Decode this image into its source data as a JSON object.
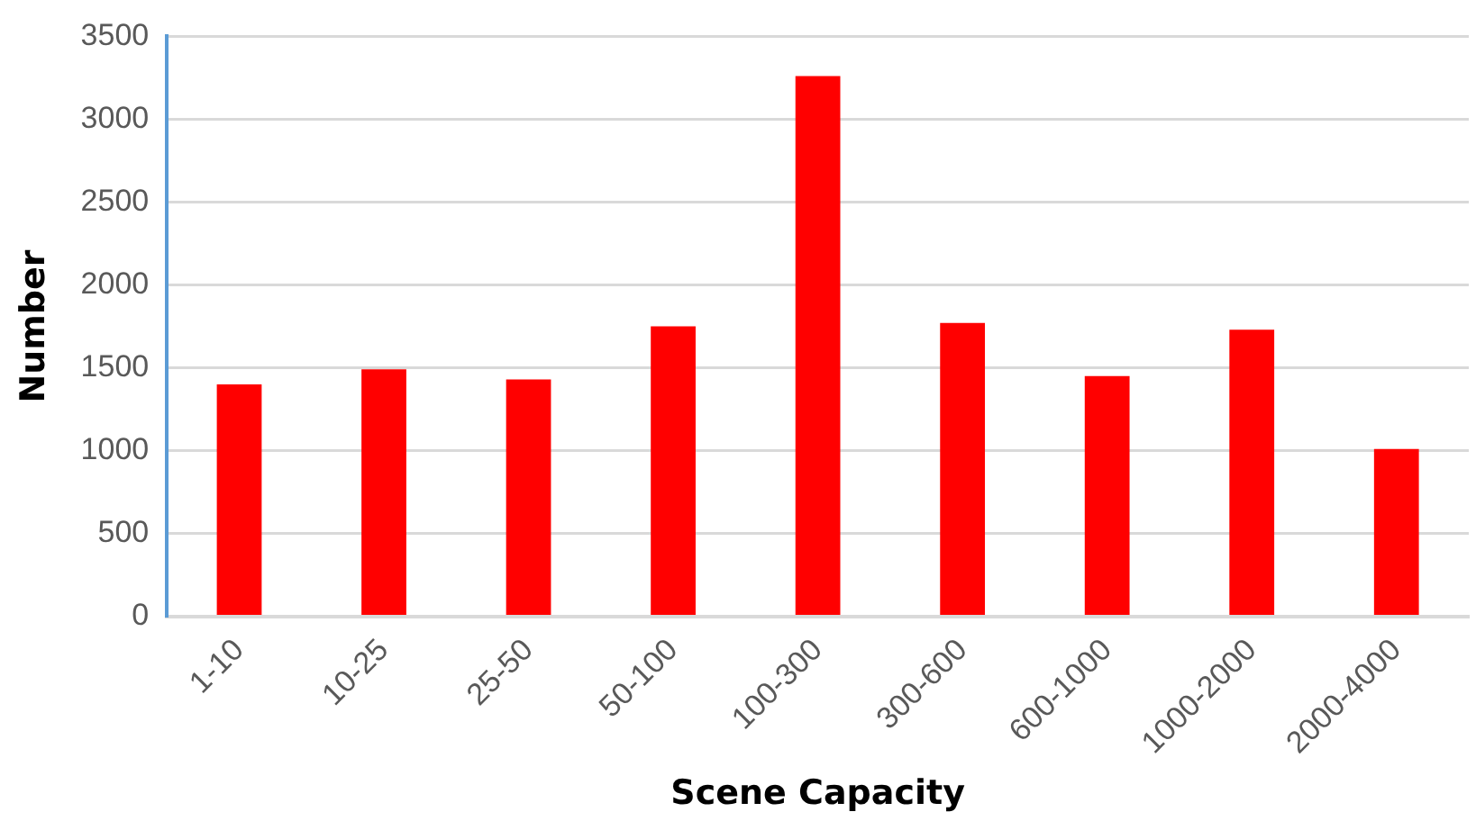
{
  "chart_data": {
    "type": "bar",
    "xlabel": "Scene Capacity",
    "ylabel": "Number",
    "categories": [
      "1-10",
      "10-25",
      "25-50",
      "50-100",
      "100-300",
      "300-600",
      "600-1000",
      "1000-2000",
      "2000-4000"
    ],
    "values": [
      1400,
      1490,
      1430,
      1750,
      3260,
      1770,
      1450,
      1730,
      1010
    ],
    "color": "#ff0000",
    "ylim": [
      0,
      3500
    ],
    "yticks": [
      0,
      500,
      1000,
      1500,
      2000,
      2500,
      3000,
      3500
    ],
    "grid": "y",
    "legend": false
  }
}
